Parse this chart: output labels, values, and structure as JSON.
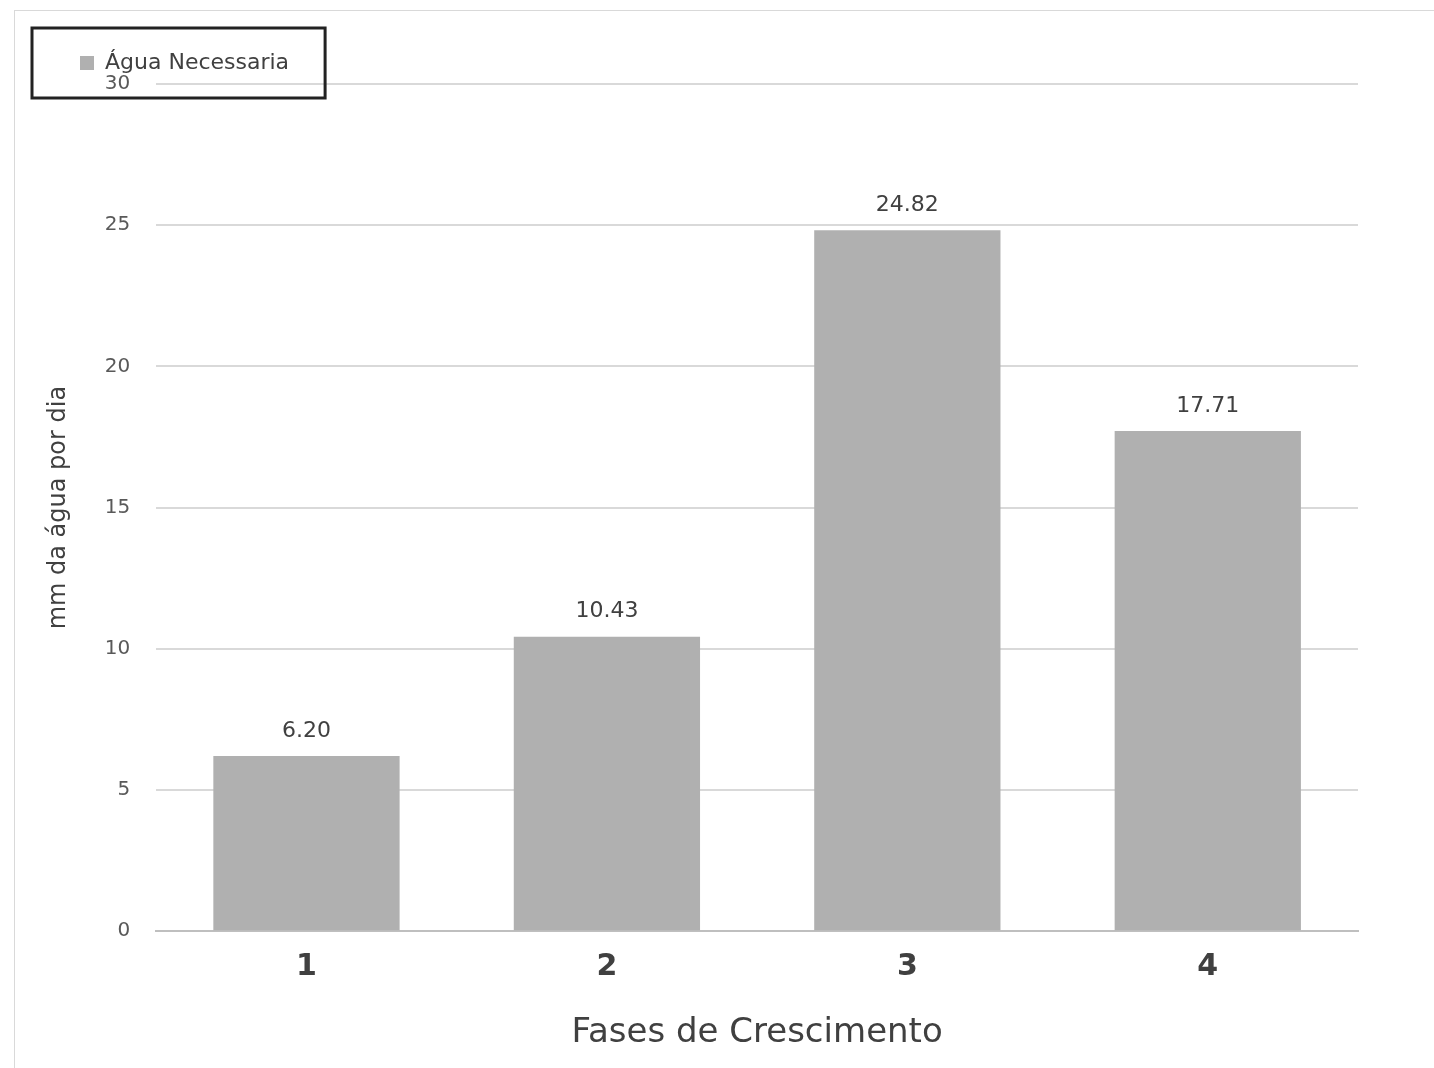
{
  "chart_data": {
    "type": "bar",
    "xlabel": "Fases de Crescimento",
    "ylabel": "mm da água por dia",
    "categories": [
      "1",
      "2",
      "3",
      "4"
    ],
    "series": [
      {
        "name": "Água Necessaria",
        "color": "#b0b0b0",
        "values": [
          6.2,
          10.43,
          24.82,
          17.71
        ]
      }
    ],
    "value_labels": [
      "6.20",
      "10.43",
      "24.82",
      "17.71"
    ],
    "ylim": [
      0,
      30
    ],
    "yticks": [
      0,
      5,
      10,
      15,
      20,
      25,
      30
    ],
    "grid": "y",
    "legend": "top left"
  }
}
